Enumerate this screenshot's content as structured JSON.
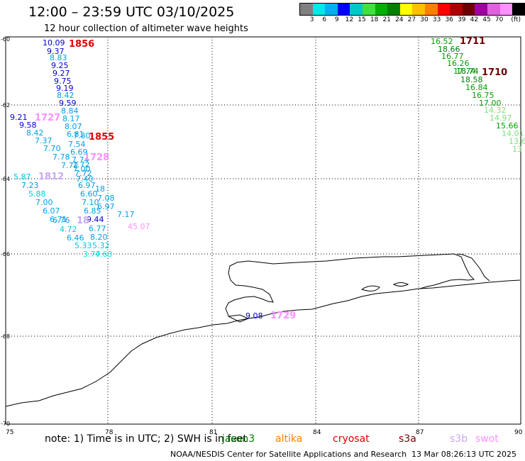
{
  "header": {
    "title": "12:00 – 23:59 UTC 03/10/2025",
    "subtitle": "12 hour collection of altimeter wave heights"
  },
  "legend": {
    "colors": [
      "#808080",
      "#00e8e8",
      "#00b0f0",
      "#0000ff",
      "#00c8c8",
      "#40e040",
      "#00b000",
      "#008000",
      "#ffff00",
      "#ffc000",
      "#ff8000",
      "#ff0000",
      "#b00000",
      "#700000",
      "#a000a0",
      "#e060e0",
      "#ff90ff",
      "#000000"
    ],
    "ticks": [
      "3",
      "6",
      "9",
      "12",
      "15",
      "18",
      "21",
      "24",
      "27",
      "30",
      "33",
      "36",
      "39",
      "42",
      "45",
      "70",
      "(ft)"
    ]
  },
  "map": {
    "lat_labels": [
      "-60",
      "-62",
      "-64",
      "-66",
      "-68",
      "-70"
    ],
    "lon_labels": [
      "75",
      "78",
      "81",
      "84",
      "87",
      "90"
    ],
    "track_times": [
      {
        "id": "t1856",
        "text": "1856",
        "color": "#e00000"
      },
      {
        "id": "t1855",
        "text": "1855",
        "color": "#e00000"
      },
      {
        "id": "t1727",
        "text": "1727",
        "color": "#ff90ff"
      },
      {
        "id": "t1728",
        "text": "1728",
        "color": "#ff90ff"
      },
      {
        "id": "t1812",
        "text": "1812",
        "color": "#c8a8f0"
      },
      {
        "id": "t18b",
        "text": "18",
        "color": "#c8a8f0"
      },
      {
        "id": "t1711",
        "text": "1711",
        "color": "#700000"
      },
      {
        "id": "t1710",
        "text": "1710",
        "color": "#700000"
      },
      {
        "id": "t1729",
        "text": "1729",
        "color": "#ff90ff"
      }
    ],
    "wave_heights": [
      {
        "v": "10.09",
        "c": "#0000cc"
      },
      {
        "v": "9.37",
        "c": "#0000cc"
      },
      {
        "v": "8.83",
        "c": "#00a0e8"
      },
      {
        "v": "9.25",
        "c": "#0000cc"
      },
      {
        "v": "9.27",
        "c": "#0000cc"
      },
      {
        "v": "9.75",
        "c": "#0000cc"
      },
      {
        "v": "9.19",
        "c": "#0000cc"
      },
      {
        "v": "8.42",
        "c": "#00a0e8"
      },
      {
        "v": "9.59",
        "c": "#0000cc"
      },
      {
        "v": "8.84",
        "c": "#00a0e8"
      },
      {
        "v": "8.17",
        "c": "#00a0e8"
      },
      {
        "v": "8.07",
        "c": "#00a0e8"
      },
      {
        "v": "6.81",
        "c": "#00a0e8"
      },
      {
        "v": "7.80",
        "c": "#00a0e8"
      },
      {
        "v": "7.54",
        "c": "#00a0e8"
      },
      {
        "v": "6.69",
        "c": "#00a0e8"
      },
      {
        "v": "7.74",
        "c": "#00a0e8"
      },
      {
        "v": "7.72",
        "c": "#00a0e8"
      },
      {
        "v": "7.00",
        "c": "#00a0e8"
      },
      {
        "v": "7.72",
        "c": "#00a0e8"
      },
      {
        "v": "7.40",
        "c": "#00a0e8"
      },
      {
        "v": "6.97",
        "c": "#00a0e8"
      },
      {
        "v": "18",
        "c": "#00a0e8"
      },
      {
        "v": "6.60",
        "c": "#00a0e8"
      },
      {
        "v": "7.08",
        "c": "#00a0e8"
      },
      {
        "v": "7.10",
        "c": "#00a0e8"
      },
      {
        "v": "6.97",
        "c": "#00a0e8"
      },
      {
        "v": "6.85",
        "c": "#00a0e8"
      },
      {
        "v": "7.17",
        "c": "#00a0e8"
      },
      {
        "v": "9.44",
        "c": "#0000cc"
      },
      {
        "v": "6.77",
        "c": "#00a0e8"
      },
      {
        "v": "8.20",
        "c": "#00a0e8"
      },
      {
        "v": "5.32",
        "c": "#00c8e0"
      },
      {
        "v": "5.33",
        "c": "#00c8e0"
      },
      {
        "v": "3.77",
        "c": "#00e8e8"
      },
      {
        "v": "4.63",
        "c": "#00e8e8"
      },
      {
        "v": "9.21",
        "c": "#0000cc"
      },
      {
        "v": "9.58",
        "c": "#0000cc"
      },
      {
        "v": "8.42",
        "c": "#00a0e8"
      },
      {
        "v": "7.37",
        "c": "#00a0e8"
      },
      {
        "v": "7.70",
        "c": "#00a0e8"
      },
      {
        "v": "7.78",
        "c": "#00a0e8"
      },
      {
        "v": "7.72",
        "c": "#00a0e8"
      },
      {
        "v": "5.87",
        "c": "#00c8e0"
      },
      {
        "v": "7.23",
        "c": "#00a0e8"
      },
      {
        "v": "5.88",
        "c": "#00c8e0"
      },
      {
        "v": "7.00",
        "c": "#00a0e8"
      },
      {
        "v": "6.07",
        "c": "#00a0e8"
      },
      {
        "v": "6.71",
        "c": "#00a0e8"
      },
      {
        "v": "6.76",
        "c": "#00a0e8"
      },
      {
        "v": "4.72",
        "c": "#00c8e0"
      },
      {
        "v": "6.46",
        "c": "#00a0e8"
      },
      {
        "v": "45.07",
        "c": "#ff90ff"
      },
      {
        "v": "16.52",
        "c": "#00a000"
      },
      {
        "v": "18.66",
        "c": "#008000"
      },
      {
        "v": "16.77",
        "c": "#00a000"
      },
      {
        "v": "16.26",
        "c": "#00a000"
      },
      {
        "v": "17.74",
        "c": "#00a000"
      },
      {
        "v": "18.74",
        "c": "#008000"
      },
      {
        "v": "18.58",
        "c": "#008000"
      },
      {
        "v": "16.84",
        "c": "#00a000"
      },
      {
        "v": "16.75",
        "c": "#00a000"
      },
      {
        "v": "17.00",
        "c": "#00a000"
      },
      {
        "v": "14.32",
        "c": "#80e080"
      },
      {
        "v": "14.97",
        "c": "#80e080"
      },
      {
        "v": "15.66",
        "c": "#00a000"
      },
      {
        "v": "14.01",
        "c": "#80e080"
      },
      {
        "v": "13.6",
        "c": "#80e080"
      },
      {
        "v": "13",
        "c": "#80e080"
      },
      {
        "v": "9.08",
        "c": "#0000cc"
      }
    ]
  },
  "footer": {
    "note": "note:  1) Time is in UTC; 2) SWH is in feet",
    "satellites": [
      {
        "name": "jason3",
        "color": "#008000"
      },
      {
        "name": "altika",
        "color": "#ff8000"
      },
      {
        "name": "cryosat",
        "color": "#e00000"
      },
      {
        "name": "s3a",
        "color": "#700000"
      },
      {
        "name": "s3b",
        "color": "#c8a8f0"
      },
      {
        "name": "swot",
        "color": "#ff90ff"
      }
    ],
    "credit": "NOAA/NESDIS Center for Satellite Applications and Research",
    "timestamp": "13 Mar 08:26:13 UTC 2025"
  }
}
